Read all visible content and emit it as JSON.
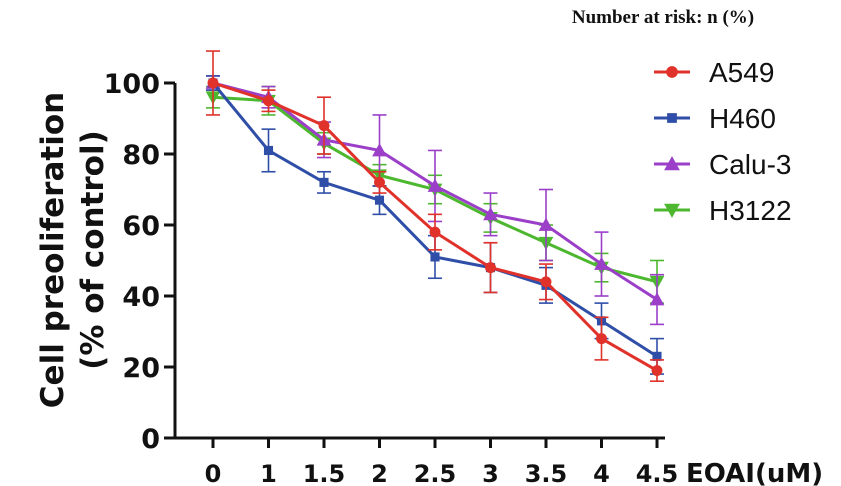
{
  "chart_data": {
    "type": "line",
    "note": "Number at risk: n (%)",
    "xlabel": "EOAI(uM)",
    "ylabel": [
      "Cell preoliferation",
      "(% of control)"
    ],
    "categories": [
      "0",
      "1",
      "1.5",
      "2",
      "2.5",
      "3",
      "3.5",
      "4",
      "4.5"
    ],
    "ylim": [
      0,
      100
    ],
    "yticks": [
      "0",
      "20",
      "40",
      "60",
      "80",
      "100"
    ],
    "grid": false,
    "legend_position": "top-right",
    "series": [
      {
        "name": "A549",
        "color": "#e0312a",
        "marker": "circle",
        "values": [
          100,
          95,
          88,
          72,
          58,
          48,
          44,
          28,
          19
        ],
        "errors": [
          9,
          3,
          8,
          3,
          5,
          7,
          5,
          6,
          3
        ]
      },
      {
        "name": "H460",
        "color": "#2f4ea8",
        "marker": "square",
        "values": [
          100,
          81,
          72,
          67,
          51,
          48,
          43,
          33,
          23
        ],
        "errors": [
          2,
          6,
          3,
          4,
          6,
          7,
          5,
          5,
          5
        ]
      },
      {
        "name": "Calu-3",
        "color": "#9b3fc9",
        "marker": "triangle-up",
        "values": [
          100,
          96,
          84,
          81,
          71,
          63,
          60,
          49,
          39
        ],
        "errors": [
          2,
          3,
          5,
          10,
          10,
          6,
          10,
          9,
          7
        ]
      },
      {
        "name": "H3122",
        "color": "#4db82f",
        "marker": "triangle-down",
        "values": [
          96,
          95,
          83,
          74,
          70,
          62,
          55,
          48,
          44
        ],
        "errors": [
          3,
          4,
          3,
          3,
          4,
          4,
          5,
          4,
          6
        ]
      }
    ]
  }
}
